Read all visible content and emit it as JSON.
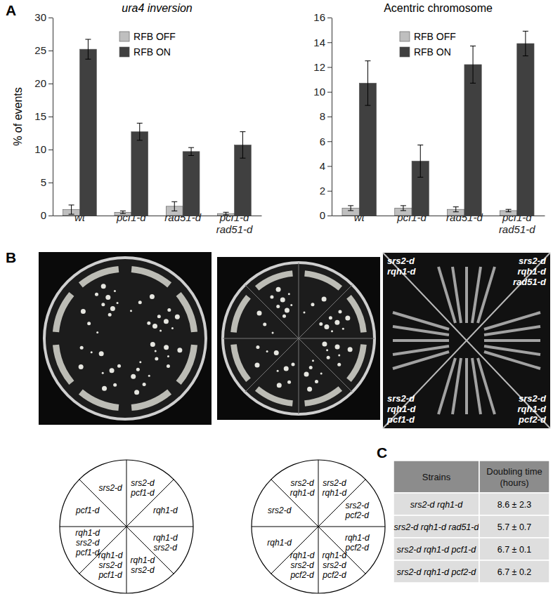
{
  "panels": {
    "a": "A",
    "b": "B",
    "c": "C"
  },
  "chart_data": [
    {
      "type": "bar",
      "title": "ura4 inversion",
      "y_label": "% of events",
      "categories": [
        "wt",
        "pcf1-d",
        "rad51-d",
        "pcf1-d rad51-d"
      ],
      "series": [
        {
          "name": "RFB OFF",
          "color": "#bfbfbf",
          "values": [
            0.9,
            0.5,
            1.4,
            0.3
          ],
          "errors": [
            0.7,
            0.2,
            0.7,
            0.2
          ]
        },
        {
          "name": "RFB ON",
          "color": "#404040",
          "values": [
            25.2,
            12.7,
            9.7,
            10.7
          ],
          "errors": [
            1.5,
            1.3,
            0.6,
            2.0
          ]
        }
      ],
      "ylim": [
        0,
        30
      ],
      "yticks": [
        0,
        5,
        10,
        15,
        20,
        25,
        30
      ],
      "legend": "top"
    },
    {
      "type": "bar",
      "title": "Acentric chromosome",
      "categories": [
        "wt",
        "pcf1-d",
        "rad51-d",
        "pcf1-d rad51-d"
      ],
      "series": [
        {
          "name": "RFB OFF",
          "color": "#bfbfbf",
          "values": [
            0.6,
            0.6,
            0.5,
            0.4
          ],
          "errors": [
            0.2,
            0.2,
            0.2,
            0.1
          ]
        },
        {
          "name": "RFB ON",
          "color": "#404040",
          "values": [
            10.7,
            4.4,
            12.2,
            13.9
          ],
          "errors": [
            1.8,
            1.3,
            1.5,
            1.0
          ]
        }
      ],
      "ylim": [
        0,
        16
      ],
      "yticks": [
        0,
        2,
        4,
        6,
        8,
        10,
        12,
        14,
        16
      ],
      "legend": "top"
    }
  ],
  "plates": [
    {
      "sectors": [
        "srs2-d pcf1-d",
        "rqh1-d",
        "rqh1-d srs2-d",
        "rqh1-d srs2-d",
        "rqh1-d srs2-d pcf1-d",
        "rqh1-d srs2-d pcf1-d",
        "pcf1-d",
        "srs2-d"
      ]
    },
    {
      "sectors": [
        "srs2-d rqh1-d",
        "srs2-d pcf2-d",
        "rqh1-d pcf2-d",
        "rqh1-d srs2-d pcf2-d",
        "rqh1-d srs2-d pcf2-d",
        "rqh1-d",
        "srs2-d",
        "srs2-d rqh1-d"
      ]
    }
  ],
  "plate_photo": {
    "labels": [
      "srs2-d rqh1-d",
      "srs2-d rqh1-d rad51-d",
      "srs2-d rqh1-d pcf1-d",
      "srs2-d rqh1-d pcf2-d"
    ]
  },
  "table": {
    "header": [
      "Strains",
      "Doubling time (hours)"
    ],
    "rows": [
      [
        "srs2-d rqh1-d",
        "8.6 ± 2.3"
      ],
      [
        "srs2-d rqh1-d rad51-d",
        "5.7 ± 0.7"
      ],
      [
        "srs2-d rqh1-d pcf1-d",
        "6.7 ± 0.1"
      ],
      [
        "srs2-d rqh1-d pcf2-d",
        "6.7 ± 0.2"
      ]
    ]
  }
}
